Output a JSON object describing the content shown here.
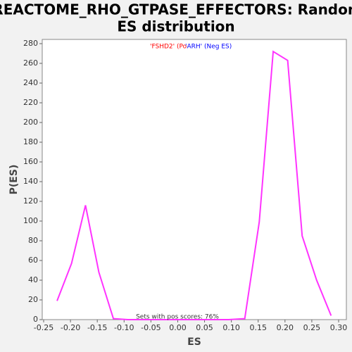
{
  "chart_data": {
    "type": "line",
    "title": "REACTOME_RHO_GTPASE_EFFECTORS: Random",
    "subtitle": "ES distribution",
    "x_label": "ES",
    "y_label": "P(ES)",
    "annotations": [
      {
        "text": "'FSHD2' (Po",
        "color": "#ff0000"
      },
      {
        "text": "'ARH' (Neg ES)",
        "color": "#0000ff"
      }
    ],
    "footnote": "Sets with pos scores: 76%",
    "x": [
      -0.225,
      -0.198,
      -0.172,
      -0.147,
      -0.12,
      -0.093,
      -0.066,
      -0.04,
      -0.013,
      0.014,
      0.041,
      0.068,
      0.095,
      0.125,
      0.152,
      0.178,
      0.205,
      0.232,
      0.259,
      0.286
    ],
    "series": [
      {
        "name": "P(ES)",
        "color": "#ff33ff",
        "values": [
          19,
          57,
          116,
          48,
          1,
          0,
          0,
          0,
          0,
          0,
          0,
          0,
          0,
          1,
          99,
          272,
          263,
          85,
          40,
          4
        ]
      }
    ],
    "xlim": [
      -0.25,
      0.3
    ],
    "xticks": [
      {
        "value": -0.25,
        "label": "-0.25"
      },
      {
        "value": -0.2,
        "label": "-0.20"
      },
      {
        "value": -0.15,
        "label": "-0.15"
      },
      {
        "value": -0.1,
        "label": "-0.10"
      },
      {
        "value": -0.05,
        "label": "-0.05"
      },
      {
        "value": 0,
        "label": "0.00"
      },
      {
        "value": 0.05,
        "label": "0.05"
      },
      {
        "value": 0.1,
        "label": "0.10"
      },
      {
        "value": 0.15,
        "label": "0.15"
      },
      {
        "value": 0.2,
        "label": "0.20"
      },
      {
        "value": 0.25,
        "label": "0.25"
      },
      {
        "value": 0.3,
        "label": "0.30"
      }
    ],
    "ylim": [
      0,
      280
    ],
    "yticks": [
      0,
      20,
      40,
      60,
      80,
      100,
      120,
      140,
      160,
      180,
      200,
      220,
      240,
      260,
      280
    ],
    "grid": false
  }
}
